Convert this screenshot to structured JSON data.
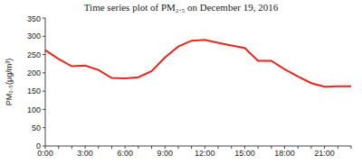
{
  "chart_data": {
    "type": "line",
    "title": "Time series plot of PM₂.₅ on December 19, 2016",
    "y_label": "PM₂.₅(μg/m³)",
    "categories": [
      "0:00",
      null,
      null,
      "3:00",
      null,
      null,
      "6:00",
      null,
      null,
      "9:00",
      null,
      null,
      "12:00",
      null,
      null,
      "15:00",
      null,
      null,
      "18:00",
      null,
      null,
      "21:00",
      null,
      null
    ],
    "values": [
      262,
      238,
      218,
      220,
      208,
      186,
      185,
      188,
      205,
      242,
      272,
      288,
      290,
      282,
      275,
      268,
      233,
      233,
      210,
      190,
      172,
      162,
      163,
      163
    ],
    "color": "#e8251f",
    "ylim": [
      0,
      350
    ],
    "yticks": [
      0,
      50,
      100,
      150,
      200,
      250,
      300,
      350
    ],
    "grid": false
  }
}
